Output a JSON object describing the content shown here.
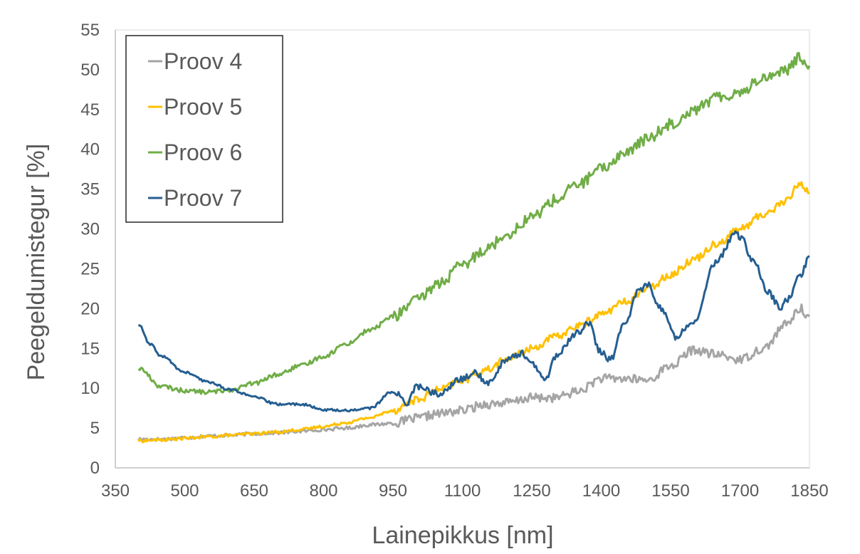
{
  "chart_data": {
    "type": "line",
    "xlabel": "Lainepikkus [nm]",
    "ylabel": "Peegeldumistegur [%]",
    "xlim": [
      350,
      1850
    ],
    "ylim": [
      0,
      55
    ],
    "x_ticks": [
      "350",
      "500",
      "650",
      "800",
      "950",
      "1100",
      "1250",
      "1400",
      "1550",
      "1700",
      "1850"
    ],
    "y_ticks": [
      "0",
      "5",
      "10",
      "15",
      "20",
      "25",
      "30",
      "35",
      "40",
      "45",
      "50",
      "55"
    ],
    "grid": false,
    "legend_position": "top-left",
    "series": [
      {
        "name": "Proov 4",
        "color": "#a5a5a5",
        "x": [
          400,
          450,
          500,
          550,
          600,
          650,
          700,
          750,
          800,
          850,
          900,
          950,
          1000,
          1050,
          1100,
          1150,
          1200,
          1250,
          1300,
          1350,
          1400,
          1450,
          1500,
          1550,
          1600,
          1650,
          1700,
          1750,
          1800,
          1830,
          1850
        ],
        "y": [
          3.6,
          3.6,
          3.8,
          4.0,
          4.1,
          4.3,
          4.4,
          4.6,
          4.8,
          5.0,
          5.4,
          5.6,
          6.2,
          6.8,
          7.2,
          8.0,
          8.2,
          8.8,
          8.8,
          9.6,
          11.2,
          11.2,
          11.0,
          12.8,
          14.8,
          14.2,
          13.6,
          15.0,
          18.0,
          20.0,
          19.0
        ],
        "noise": 0.35
      },
      {
        "name": "Proov 5",
        "color": "#ffc000",
        "x": [
          400,
          450,
          500,
          550,
          600,
          650,
          700,
          750,
          800,
          850,
          900,
          950,
          1000,
          1050,
          1100,
          1150,
          1200,
          1250,
          1300,
          1350,
          1400,
          1450,
          1500,
          1550,
          1600,
          1650,
          1700,
          1750,
          1800,
          1830,
          1850
        ],
        "y": [
          3.4,
          3.5,
          3.7,
          3.9,
          4.1,
          4.3,
          4.5,
          4.8,
          5.2,
          5.7,
          6.3,
          7.2,
          8.5,
          9.8,
          11.0,
          12.3,
          13.7,
          15.0,
          16.4,
          17.8,
          19.3,
          20.8,
          22.5,
          24.3,
          26.2,
          28.2,
          30.0,
          31.8,
          33.5,
          35.8,
          34.5
        ],
        "noise": 0.3
      },
      {
        "name": "Proov 6",
        "color": "#70ad47",
        "x": [
          400,
          450,
          500,
          550,
          600,
          650,
          700,
          750,
          800,
          850,
          900,
          950,
          1000,
          1050,
          1100,
          1150,
          1200,
          1250,
          1300,
          1350,
          1400,
          1450,
          1500,
          1550,
          1600,
          1650,
          1700,
          1750,
          1800,
          1830,
          1850
        ],
        "y": [
          12.5,
          10.2,
          9.7,
          9.5,
          9.8,
          10.6,
          11.7,
          12.8,
          14.0,
          15.6,
          17.3,
          19.0,
          21.0,
          23.2,
          25.4,
          27.5,
          29.5,
          31.5,
          33.6,
          35.6,
          37.5,
          39.5,
          41.3,
          43.2,
          45.0,
          46.5,
          47.2,
          49.0,
          50.0,
          51.5,
          50.5
        ],
        "noise": 0.45
      },
      {
        "name": "Proov 7",
        "color": "#255e91",
        "x": [
          400,
          425,
          450,
          500,
          550,
          600,
          650,
          700,
          750,
          800,
          850,
          900,
          950,
          980,
          1000,
          1050,
          1100,
          1130,
          1150,
          1200,
          1230,
          1250,
          1280,
          1300,
          1350,
          1370,
          1400,
          1420,
          1450,
          1480,
          1500,
          1530,
          1560,
          1600,
          1650,
          1690,
          1700,
          1730,
          1760,
          1790,
          1800,
          1830,
          1850
        ],
        "y": [
          18.0,
          15.5,
          14.0,
          12.0,
          10.8,
          9.8,
          8.9,
          8.0,
          8.0,
          7.3,
          7.2,
          7.5,
          9.6,
          8.2,
          10.2,
          9.3,
          11.2,
          12.0,
          10.5,
          13.8,
          14.4,
          13.0,
          11.0,
          14.0,
          17.0,
          18.3,
          14.5,
          13.6,
          18.0,
          22.2,
          23.0,
          20.0,
          16.5,
          18.5,
          26.0,
          29.4,
          29.0,
          26.0,
          22.0,
          20.0,
          21.0,
          24.0,
          26.6
        ],
        "noise": 0.25
      }
    ]
  }
}
